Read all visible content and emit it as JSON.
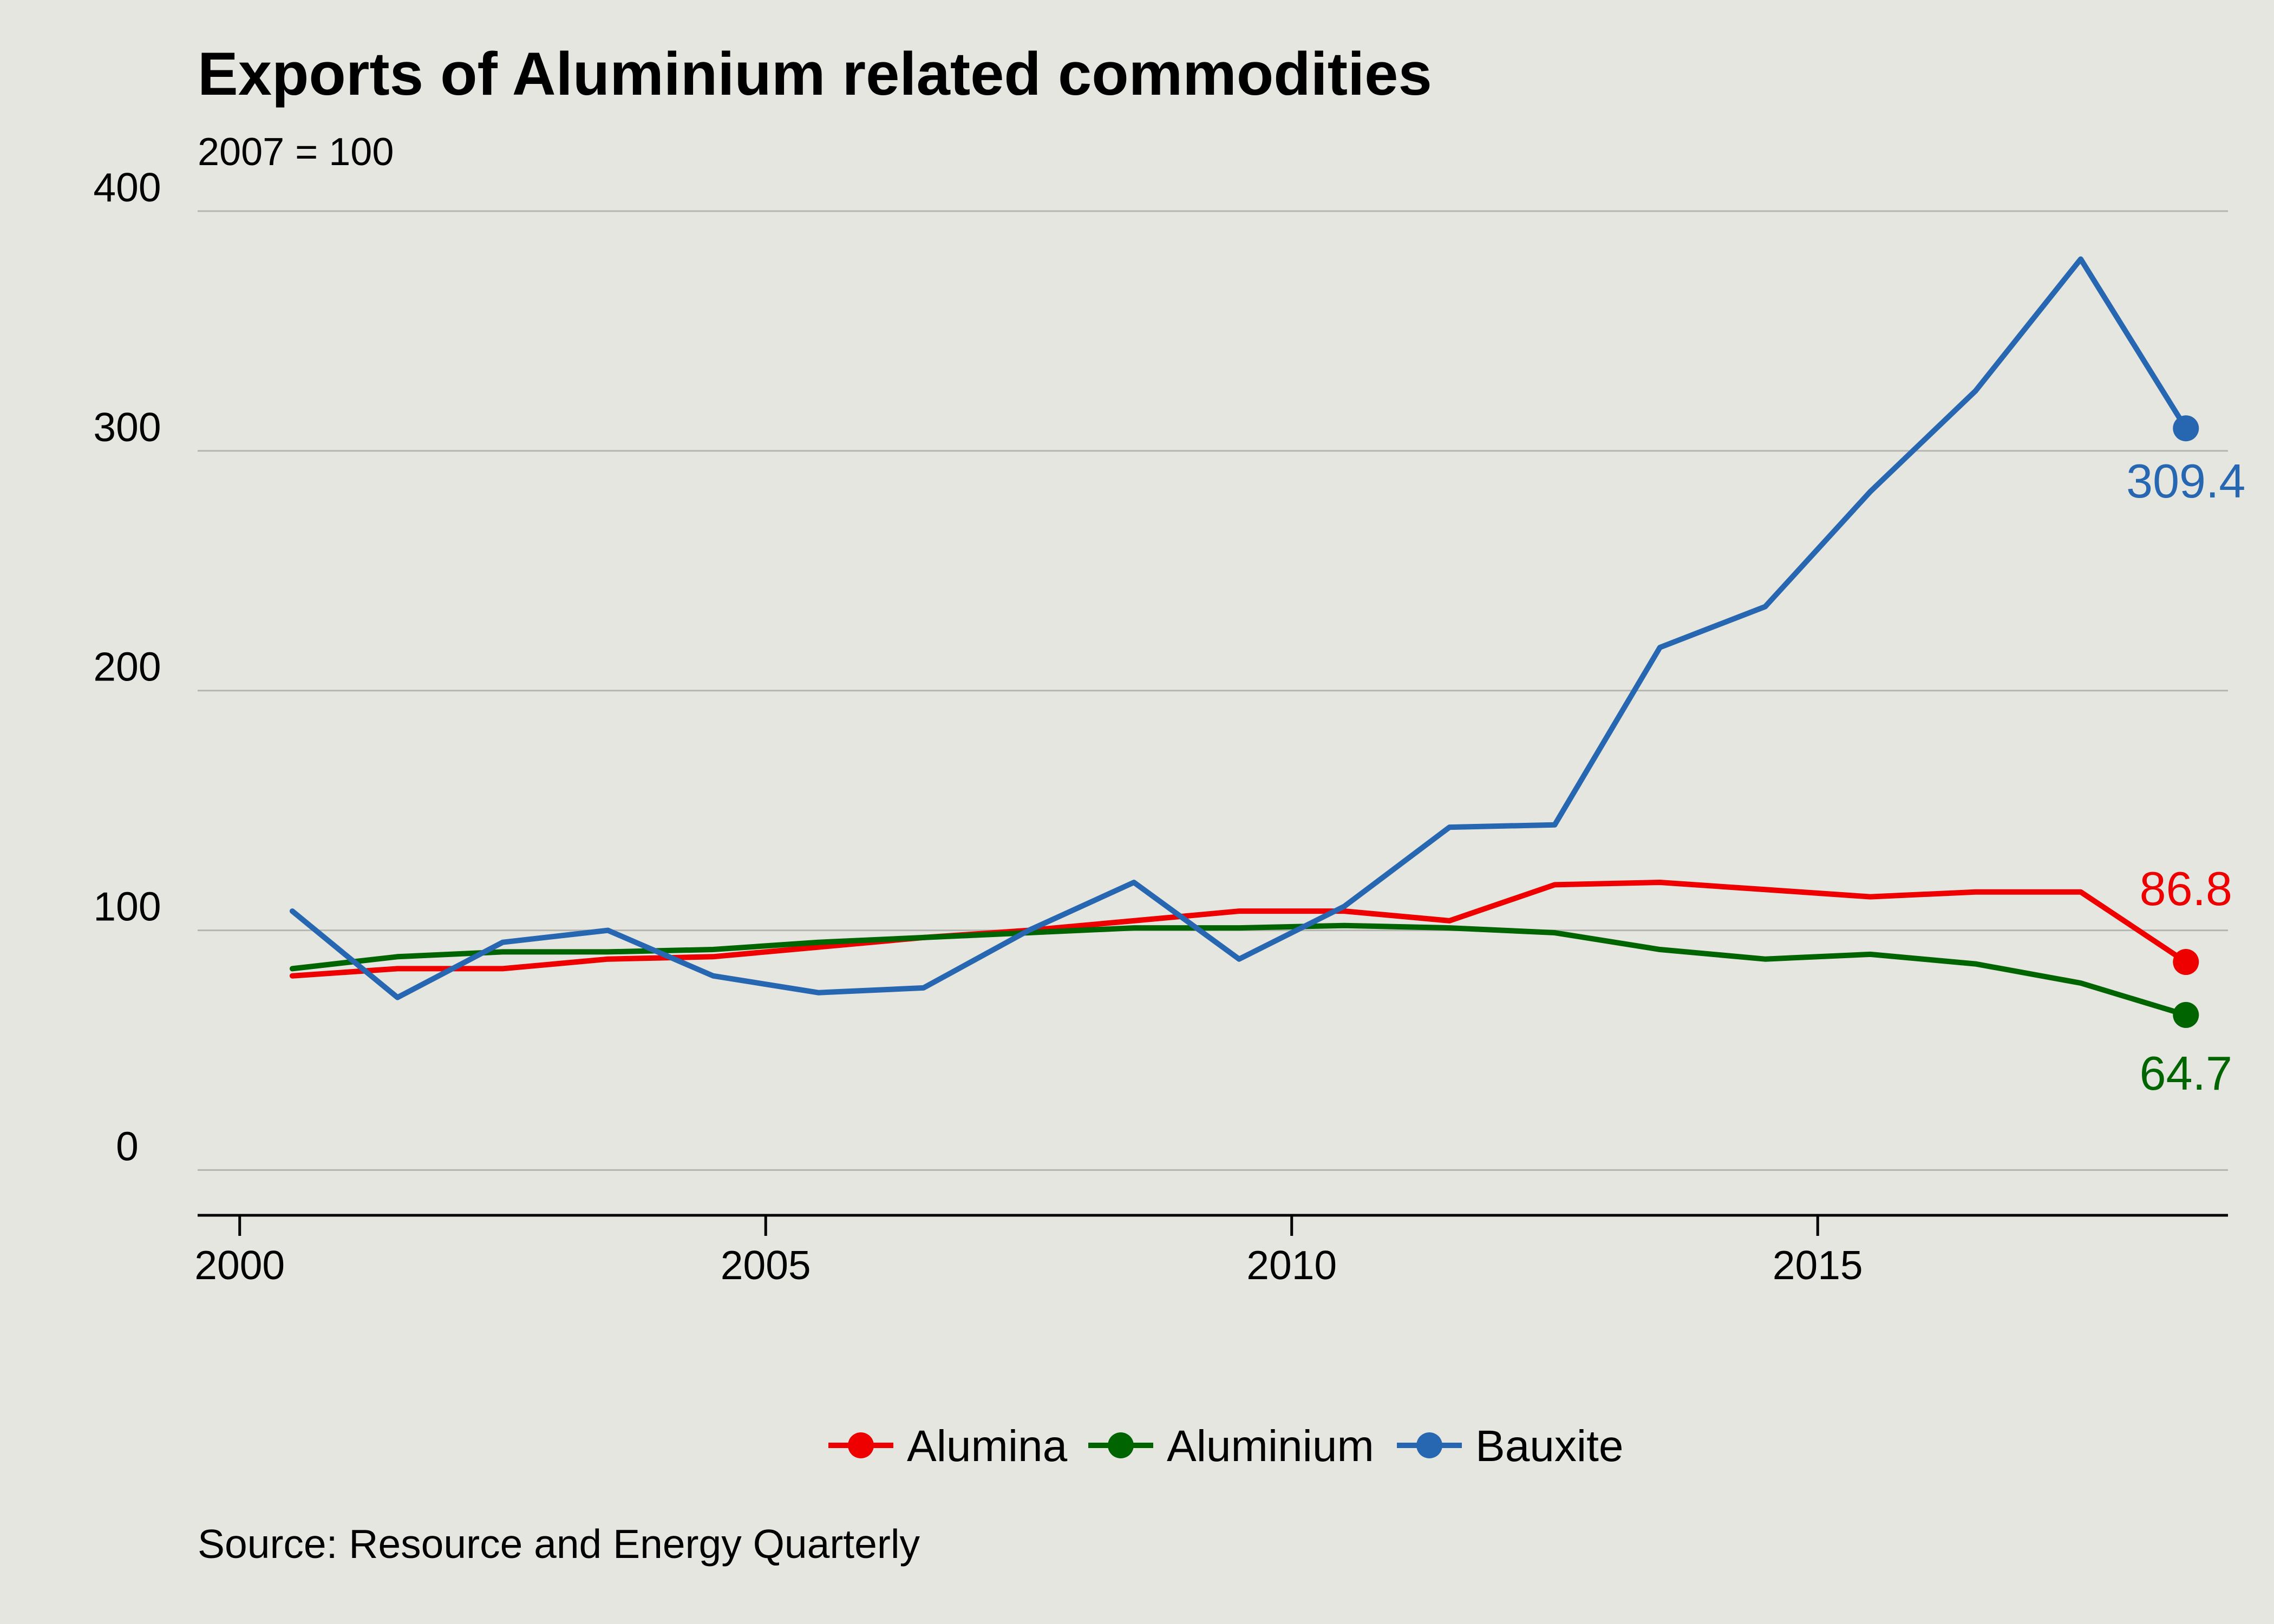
{
  "chart_data": {
    "type": "line",
    "title": "Exports of Aluminium related commodities",
    "subtitle": "2007 = 100",
    "caption": "Source: Resource and Energy Quarterly",
    "xlabel": "",
    "ylabel": "",
    "xlim": [
      1999.6,
      2018.9
    ],
    "ylim": [
      -20,
      400
    ],
    "x_ticks": [
      2000,
      2005,
      2010,
      2015
    ],
    "y_ticks": [
      0,
      100,
      200,
      300,
      400
    ],
    "grid": "horizontal",
    "legend_position": "bottom",
    "x": [
      2000.5,
      2001.5,
      2002.5,
      2003.5,
      2004.5,
      2005.5,
      2006.5,
      2007.5,
      2008.5,
      2009.5,
      2010.5,
      2011.5,
      2012.5,
      2013.5,
      2014.5,
      2015.5,
      2016.5,
      2017.5,
      2018.5
    ],
    "series": [
      {
        "name": "Alumina",
        "color": "#ee0000",
        "values": [
          81,
          84,
          84,
          88,
          89,
          93,
          97,
          100,
          104,
          108,
          108,
          104,
          119,
          120,
          117,
          114,
          116,
          116,
          86.8
        ],
        "end_label": "86.8"
      },
      {
        "name": "Aluminium",
        "color": "#006400",
        "values": [
          84,
          89,
          91,
          91,
          92,
          95,
          97,
          99,
          101,
          101,
          102,
          101,
          99,
          92,
          88,
          90,
          86,
          78,
          64.7
        ],
        "end_label": "64.7"
      },
      {
        "name": "Bauxite",
        "color": "#2766b0",
        "values": [
          108,
          72,
          95,
          100,
          81,
          74,
          76,
          100,
          120,
          88,
          110,
          143,
          144,
          218,
          235,
          283,
          325,
          380,
          309.4
        ],
        "end_label": "309.4"
      }
    ]
  }
}
